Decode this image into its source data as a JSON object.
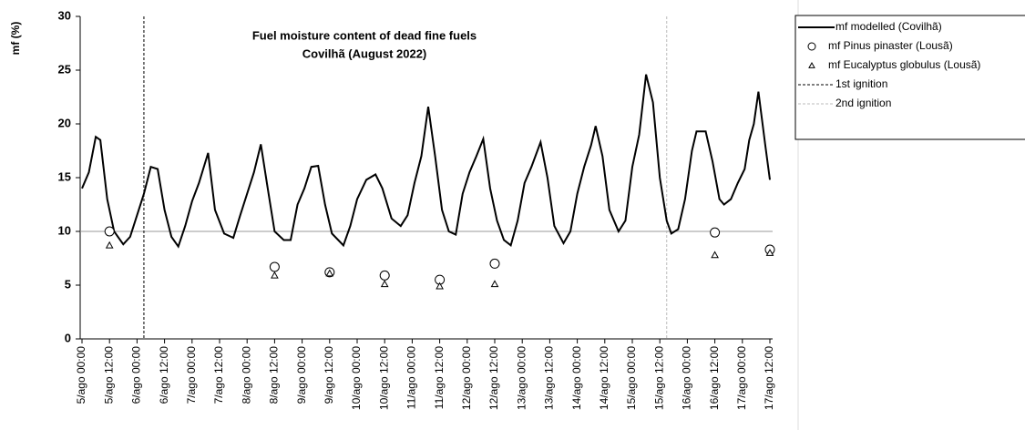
{
  "chart_data": {
    "type": "line",
    "title": "Fuel moisture content of dead fine fuels",
    "subtitle": "Covilhã (August 2022)",
    "ylabel": "mf (%)",
    "ylim": [
      0,
      30
    ],
    "yticks": [
      0,
      5,
      10,
      15,
      20,
      25,
      30
    ],
    "xlim": [
      0,
      300
    ],
    "xticks": [
      {
        "value": 0,
        "label": "5/ago 00:00"
      },
      {
        "value": 12,
        "label": "5/ago 12:00"
      },
      {
        "value": 24,
        "label": "6/ago 00:00"
      },
      {
        "value": 36,
        "label": "6/ago 12:00"
      },
      {
        "value": 48,
        "label": "7/ago 00:00"
      },
      {
        "value": 60,
        "label": "7/ago 12:00"
      },
      {
        "value": 72,
        "label": "8/ago 00:00"
      },
      {
        "value": 84,
        "label": "8/ago 12:00"
      },
      {
        "value": 96,
        "label": "9/ago 00:00"
      },
      {
        "value": 108,
        "label": "9/ago 12:00"
      },
      {
        "value": 120,
        "label": "10/ago 00:00"
      },
      {
        "value": 132,
        "label": "10/ago 12:00"
      },
      {
        "value": 144,
        "label": "11/ago 00:00"
      },
      {
        "value": 156,
        "label": "11/ago 12:00"
      },
      {
        "value": 168,
        "label": "12/ago 00:00"
      },
      {
        "value": 180,
        "label": "12/ago 12:00"
      },
      {
        "value": 192,
        "label": "13/ago 00:00"
      },
      {
        "value": 204,
        "label": "13/ago 12:00"
      },
      {
        "value": 216,
        "label": "14/ago 00:00"
      },
      {
        "value": 228,
        "label": "14/ago 12:00"
      },
      {
        "value": 240,
        "label": "15/ago 00:00"
      },
      {
        "value": 252,
        "label": "15/ago 12:00"
      },
      {
        "value": 264,
        "label": "16/ago 00:00"
      },
      {
        "value": 276,
        "label": "16/ago 12:00"
      },
      {
        "value": 288,
        "label": "17/ago 00:00"
      },
      {
        "value": 300,
        "label": "17/ago 12:00"
      }
    ],
    "hline": {
      "value": 10,
      "color": "#999999"
    },
    "series": [
      {
        "name": "mf modelled (Covilhã)",
        "color": "#000000",
        "kind": "line",
        "x": [
          0,
          3,
          6,
          8,
          11,
          14,
          18,
          21,
          24,
          27,
          30,
          33,
          36,
          39,
          42,
          45,
          48,
          51,
          55,
          58,
          62,
          66,
          69,
          72,
          75,
          78,
          81,
          84,
          88,
          91,
          94,
          97,
          100,
          103,
          106,
          109,
          114,
          117,
          120,
          124,
          128,
          131,
          135,
          139,
          142,
          145,
          148,
          151,
          154,
          157,
          160,
          163,
          166,
          169,
          172,
          175,
          178,
          181,
          184,
          187,
          190,
          193,
          196,
          200,
          203,
          206,
          210,
          213,
          216,
          219,
          222,
          224,
          227,
          230,
          234,
          237,
          240,
          243,
          246,
          249,
          252,
          255,
          257,
          260,
          263,
          266,
          268,
          272,
          275,
          278,
          280,
          283,
          286,
          289,
          291,
          293,
          295,
          298,
          300
        ],
        "values": [
          14,
          15.5,
          18.8,
          18.5,
          13,
          10,
          8.8,
          9.5,
          11.5,
          13.5,
          16,
          15.8,
          12,
          9.5,
          8.6,
          10.5,
          12.8,
          14.5,
          17.3,
          12,
          9.8,
          9.4,
          11.5,
          13.5,
          15.5,
          18.1,
          14,
          10,
          9.2,
          9.2,
          12.5,
          14,
          16,
          16.1,
          12.5,
          9.8,
          8.7,
          10.5,
          13,
          14.8,
          15.3,
          14,
          11.2,
          10.5,
          11.5,
          14.5,
          17,
          21.6,
          17,
          12,
          10,
          9.7,
          13.5,
          15.5,
          17,
          18.6,
          14,
          11,
          9.2,
          8.7,
          11,
          14.5,
          16,
          18.3,
          15,
          10.5,
          8.9,
          10,
          13.5,
          16,
          18,
          19.8,
          17,
          12,
          10,
          11,
          16,
          19,
          24.6,
          22,
          15,
          11,
          9.8,
          10.2,
          13,
          17.5,
          19.3,
          19.3,
          16.5,
          13,
          12.5,
          13,
          14.5,
          15.8,
          18.5,
          20,
          23,
          18,
          14.8
        ]
      },
      {
        "name": "mf Pinus pinaster (Lousã)",
        "color": "#000000",
        "kind": "circle",
        "x": [
          12,
          84,
          108,
          132,
          156,
          180,
          276,
          300
        ],
        "values": [
          10,
          6.7,
          6.2,
          5.9,
          5.5,
          7,
          9.9,
          8.3
        ]
      },
      {
        "name": "mf Eucalyptus globulus (Lousã)",
        "color": "#000000",
        "kind": "triangle",
        "x": [
          12,
          84,
          108,
          132,
          156,
          180,
          276,
          300
        ],
        "values": [
          8.7,
          5.9,
          6.1,
          5.1,
          4.9,
          5.1,
          7.8,
          8
        ]
      }
    ],
    "vlines": [
      {
        "name": "1st ignition",
        "x": 27,
        "color": "#000000"
      },
      {
        "name": "2nd ignition",
        "x": 255,
        "color": "#bbbbbb"
      }
    ]
  }
}
